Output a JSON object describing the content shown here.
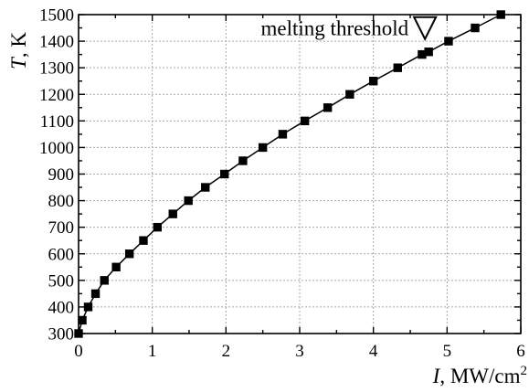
{
  "chart_data": {
    "type": "line",
    "title": "",
    "xlabel": {
      "symbol": "I",
      "unit": ", MW/cm",
      "unit_sup": "2"
    },
    "ylabel": {
      "symbol": "T",
      "unit": ", K"
    },
    "xlim": [
      0,
      6
    ],
    "ylim": [
      300,
      1500
    ],
    "xticks": [
      0,
      1,
      2,
      3,
      4,
      5,
      6
    ],
    "yticks": [
      300,
      400,
      500,
      600,
      700,
      800,
      900,
      1000,
      1100,
      1200,
      1300,
      1400,
      1500
    ],
    "x_minor_step": 0.5,
    "y_minor_step": 50,
    "grid": true,
    "series": [
      {
        "marker": "square",
        "color": "#000000",
        "x": [
          0.0,
          0.05,
          0.13,
          0.23,
          0.35,
          0.51,
          0.69,
          0.88,
          1.07,
          1.28,
          1.49,
          1.72,
          1.98,
          2.23,
          2.5,
          2.77,
          3.07,
          3.38,
          3.68,
          4.0,
          4.33,
          4.66,
          4.75,
          5.02,
          5.38,
          5.73
        ],
        "y": [
          300,
          350,
          400,
          450,
          500,
          550,
          600,
          650,
          700,
          750,
          800,
          850,
          900,
          950,
          1000,
          1050,
          1100,
          1150,
          1200,
          1250,
          1300,
          1350,
          1360,
          1400,
          1450,
          1500
        ]
      }
    ],
    "annotations": [
      {
        "text": "melting threshold",
        "marker": "open-triangle-down",
        "x": 4.75,
        "y": 1360
      }
    ]
  }
}
